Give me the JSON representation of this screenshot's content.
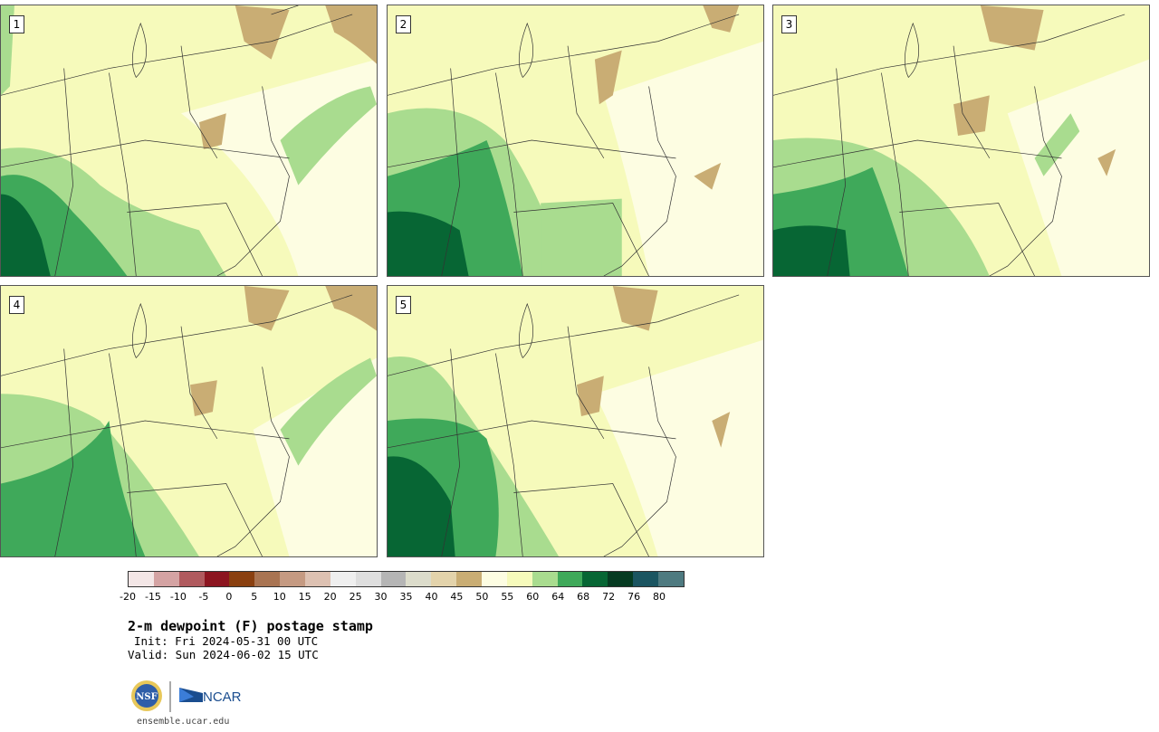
{
  "title": "2-m dewpoint (F) postage stamp",
  "init": "Init: Fri 2024-05-31 00 UTC",
  "valid": "Valid: Sun 2024-06-02 15 UTC",
  "site": "ensemble.ucar.edu",
  "logo_text": {
    "nsf": "NSF",
    "ncar": "NCAR"
  },
  "panels": [
    {
      "label": "1"
    },
    {
      "label": "2"
    },
    {
      "label": "3"
    },
    {
      "label": "4"
    },
    {
      "label": "5"
    }
  ],
  "colorbar": {
    "ticks": [
      "-20",
      "-15",
      "-10",
      "-5",
      "0",
      "5",
      "10",
      "15",
      "20",
      "25",
      "30",
      "35",
      "40",
      "45",
      "50",
      "55",
      "60",
      "64",
      "68",
      "72",
      "76",
      "80"
    ],
    "colors": [
      "#f3e6e6",
      "#d4a3a3",
      "#b05a5e",
      "#8c1520",
      "#8a4010",
      "#a97452",
      "#c59a82",
      "#ddc1b2",
      "#efefef",
      "#dedede",
      "#b5b5b5",
      "#dcdccb",
      "#e3d3ab",
      "#c9ad74",
      "#fdfde2",
      "#f6fabb",
      "#a9dc8f",
      "#3fa95a",
      "#076634",
      "#063b22",
      "#1b5561",
      "#4e7a80"
    ]
  },
  "map_colors": {
    "dry": "#c9ad74",
    "light": "#fdfde2",
    "pale": "#f6fabb",
    "green": "#a9dc8f",
    "mid_green": "#3fa95a",
    "dark_green": "#076634"
  }
}
